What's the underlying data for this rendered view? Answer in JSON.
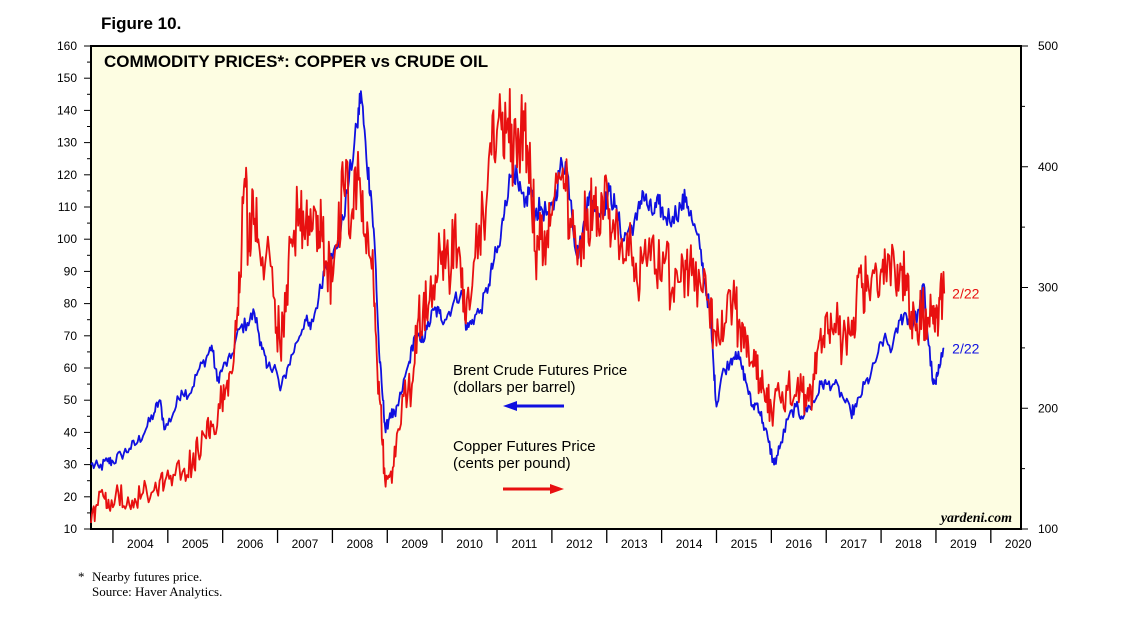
{
  "figure_label": "Figure 10.",
  "footnote": {
    "star": "*",
    "note": "Nearby futures price.",
    "source": "Source: Haver Analytics."
  },
  "credit": "yardeni.com",
  "colors": {
    "oil": "#1010e0",
    "copper": "#e81010",
    "plot_bg": "#fdfde2"
  },
  "chart_data": {
    "type": "line",
    "title": "COMMODITY PRICES*: COPPER vs CRUDE OIL",
    "x_range": [
      2003.6,
      2020.55
    ],
    "x_tick_labels": [
      "2004",
      "2005",
      "2006",
      "2007",
      "2008",
      "2009",
      "2010",
      "2011",
      "2012",
      "2013",
      "2014",
      "2015",
      "2016",
      "2017",
      "2018",
      "2019",
      "2020"
    ],
    "left_axis": {
      "range": [
        10,
        160
      ],
      "ticks": [
        10,
        20,
        30,
        40,
        50,
        60,
        70,
        80,
        90,
        100,
        110,
        120,
        130,
        140,
        150,
        160
      ]
    },
    "right_axis": {
      "range": [
        100,
        500
      ],
      "ticks": [
        100,
        200,
        300,
        400,
        500
      ]
    },
    "annotations": [
      {
        "text": [
          "Brent Crude Futures Price",
          "(dollars per barrel)"
        ],
        "arrow": "left"
      },
      {
        "text": [
          "Copper Futures Price",
          "(cents per pound)"
        ],
        "arrow": "right"
      }
    ],
    "series": [
      {
        "name": "Brent Crude Futures Price",
        "axis": "left",
        "end_label": "2/22",
        "points": [
          [
            2003.6,
            30
          ],
          [
            2003.75,
            29
          ],
          [
            2003.9,
            31
          ],
          [
            2004.0,
            31
          ],
          [
            2004.15,
            33
          ],
          [
            2004.3,
            35
          ],
          [
            2004.45,
            37
          ],
          [
            2004.6,
            41
          ],
          [
            2004.75,
            46
          ],
          [
            2004.85,
            50
          ],
          [
            2004.95,
            41
          ],
          [
            2005.1,
            46
          ],
          [
            2005.25,
            53
          ],
          [
            2005.4,
            52
          ],
          [
            2005.55,
            59
          ],
          [
            2005.7,
            63
          ],
          [
            2005.8,
            67
          ],
          [
            2005.9,
            56
          ],
          [
            2006.0,
            60
          ],
          [
            2006.15,
            63
          ],
          [
            2006.3,
            72
          ],
          [
            2006.45,
            74
          ],
          [
            2006.58,
            77
          ],
          [
            2006.7,
            68
          ],
          [
            2006.8,
            60
          ],
          [
            2006.95,
            61
          ],
          [
            2007.05,
            53
          ],
          [
            2007.2,
            61
          ],
          [
            2007.35,
            68
          ],
          [
            2007.5,
            75
          ],
          [
            2007.6,
            72
          ],
          [
            2007.75,
            82
          ],
          [
            2007.88,
            93
          ],
          [
            2008.0,
            94
          ],
          [
            2008.15,
            102
          ],
          [
            2008.3,
            118
          ],
          [
            2008.45,
            135
          ],
          [
            2008.52,
            146
          ],
          [
            2008.62,
            125
          ],
          [
            2008.7,
            115
          ],
          [
            2008.78,
            95
          ],
          [
            2008.85,
            65
          ],
          [
            2008.92,
            50
          ],
          [
            2008.97,
            40
          ],
          [
            2009.05,
            46
          ],
          [
            2009.15,
            45
          ],
          [
            2009.25,
            52
          ],
          [
            2009.4,
            62
          ],
          [
            2009.5,
            70
          ],
          [
            2009.62,
            68
          ],
          [
            2009.72,
            72
          ],
          [
            2009.85,
            78
          ],
          [
            2009.95,
            77
          ],
          [
            2010.05,
            75
          ],
          [
            2010.2,
            80
          ],
          [
            2010.35,
            84
          ],
          [
            2010.45,
            72
          ],
          [
            2010.55,
            75
          ],
          [
            2010.7,
            78
          ],
          [
            2010.85,
            86
          ],
          [
            2010.95,
            94
          ],
          [
            2011.05,
            98
          ],
          [
            2011.15,
            112
          ],
          [
            2011.3,
            123
          ],
          [
            2011.4,
            115
          ],
          [
            2011.5,
            110
          ],
          [
            2011.6,
            116
          ],
          [
            2011.7,
            108
          ],
          [
            2011.8,
            110
          ],
          [
            2011.95,
            107
          ],
          [
            2012.05,
            112
          ],
          [
            2012.15,
            122
          ],
          [
            2012.25,
            124
          ],
          [
            2012.35,
            112
          ],
          [
            2012.45,
            95
          ],
          [
            2012.55,
            100
          ],
          [
            2012.65,
            113
          ],
          [
            2012.75,
            112
          ],
          [
            2012.85,
            108
          ],
          [
            2012.95,
            110
          ],
          [
            2013.05,
            115
          ],
          [
            2013.15,
            110
          ],
          [
            2013.3,
            100
          ],
          [
            2013.4,
            103
          ],
          [
            2013.55,
            106
          ],
          [
            2013.65,
            115
          ],
          [
            2013.75,
            110
          ],
          [
            2013.85,
            108
          ],
          [
            2013.95,
            111
          ],
          [
            2014.05,
            107
          ],
          [
            2014.2,
            107
          ],
          [
            2014.35,
            110
          ],
          [
            2014.45,
            113
          ],
          [
            2014.55,
            106
          ],
          [
            2014.7,
            97
          ],
          [
            2014.8,
            85
          ],
          [
            2014.88,
            78
          ],
          [
            2014.95,
            60
          ],
          [
            2015.0,
            48
          ],
          [
            2015.1,
            58
          ],
          [
            2015.25,
            62
          ],
          [
            2015.35,
            65
          ],
          [
            2015.45,
            61
          ],
          [
            2015.55,
            55
          ],
          [
            2015.65,
            48
          ],
          [
            2015.75,
            49
          ],
          [
            2015.85,
            43
          ],
          [
            2015.95,
            37
          ],
          [
            2016.05,
            30
          ],
          [
            2016.15,
            35
          ],
          [
            2016.3,
            44
          ],
          [
            2016.45,
            48
          ],
          [
            2016.55,
            45
          ],
          [
            2016.7,
            48
          ],
          [
            2016.8,
            50
          ],
          [
            2016.9,
            55
          ],
          [
            2017.0,
            55
          ],
          [
            2017.15,
            55
          ],
          [
            2017.3,
            51
          ],
          [
            2017.45,
            46
          ],
          [
            2017.55,
            48
          ],
          [
            2017.7,
            55
          ],
          [
            2017.8,
            57
          ],
          [
            2017.95,
            65
          ],
          [
            2018.05,
            69
          ],
          [
            2018.2,
            66
          ],
          [
            2018.35,
            75
          ],
          [
            2018.45,
            77
          ],
          [
            2018.55,
            73
          ],
          [
            2018.7,
            78
          ],
          [
            2018.78,
            86
          ],
          [
            2018.85,
            70
          ],
          [
            2018.95,
            55
          ],
          [
            2019.0,
            55
          ],
          [
            2019.05,
            61
          ],
          [
            2019.15,
            66
          ]
        ]
      },
      {
        "name": "Copper Futures Price",
        "axis": "right",
        "end_label": "2/22",
        "points": [
          [
            2003.6,
            105
          ],
          [
            2003.7,
            120
          ],
          [
            2003.85,
            125
          ],
          [
            2003.95,
            115
          ],
          [
            2004.1,
            130
          ],
          [
            2004.25,
            120
          ],
          [
            2004.4,
            125
          ],
          [
            2004.55,
            130
          ],
          [
            2004.7,
            130
          ],
          [
            2004.85,
            140
          ],
          [
            2004.95,
            140
          ],
          [
            2005.1,
            145
          ],
          [
            2005.3,
            150
          ],
          [
            2005.45,
            155
          ],
          [
            2005.55,
            165
          ],
          [
            2005.7,
            175
          ],
          [
            2005.8,
            185
          ],
          [
            2005.95,
            200
          ],
          [
            2006.05,
            215
          ],
          [
            2006.15,
            230
          ],
          [
            2006.25,
            265
          ],
          [
            2006.32,
            310
          ],
          [
            2006.4,
            390
          ],
          [
            2006.48,
            330
          ],
          [
            2006.55,
            380
          ],
          [
            2006.65,
            340
          ],
          [
            2006.8,
            330
          ],
          [
            2006.95,
            290
          ],
          [
            2007.05,
            250
          ],
          [
            2007.15,
            280
          ],
          [
            2007.25,
            340
          ],
          [
            2007.4,
            365
          ],
          [
            2007.5,
            340
          ],
          [
            2007.6,
            365
          ],
          [
            2007.72,
            330
          ],
          [
            2007.8,
            350
          ],
          [
            2007.9,
            320
          ],
          [
            2008.0,
            305
          ],
          [
            2008.1,
            340
          ],
          [
            2008.2,
            385
          ],
          [
            2008.35,
            360
          ],
          [
            2008.45,
            390
          ],
          [
            2008.55,
            380
          ],
          [
            2008.65,
            345
          ],
          [
            2008.75,
            300
          ],
          [
            2008.82,
            230
          ],
          [
            2008.9,
            175
          ],
          [
            2008.97,
            135
          ],
          [
            2009.05,
            145
          ],
          [
            2009.15,
            160
          ],
          [
            2009.3,
            210
          ],
          [
            2009.45,
            220
          ],
          [
            2009.55,
            270
          ],
          [
            2009.65,
            280
          ],
          [
            2009.75,
            285
          ],
          [
            2009.88,
            310
          ],
          [
            2010.0,
            330
          ],
          [
            2010.12,
            315
          ],
          [
            2010.22,
            345
          ],
          [
            2010.35,
            300
          ],
          [
            2010.45,
            290
          ],
          [
            2010.6,
            325
          ],
          [
            2010.75,
            360
          ],
          [
            2010.9,
            410
          ],
          [
            2011.0,
            430
          ],
          [
            2011.1,
            445
          ],
          [
            2011.2,
            440
          ],
          [
            2011.3,
            410
          ],
          [
            2011.4,
            420
          ],
          [
            2011.5,
            430
          ],
          [
            2011.6,
            420
          ],
          [
            2011.7,
            330
          ],
          [
            2011.8,
            340
          ],
          [
            2011.9,
            340
          ],
          [
            2012.0,
            360
          ],
          [
            2012.15,
            390
          ],
          [
            2012.25,
            380
          ],
          [
            2012.35,
            350
          ],
          [
            2012.45,
            330
          ],
          [
            2012.55,
            345
          ],
          [
            2012.65,
            365
          ],
          [
            2012.75,
            360
          ],
          [
            2012.85,
            350
          ],
          [
            2012.95,
            365
          ],
          [
            2013.05,
            365
          ],
          [
            2013.15,
            340
          ],
          [
            2013.3,
            320
          ],
          [
            2013.45,
            330
          ],
          [
            2013.55,
            305
          ],
          [
            2013.65,
            320
          ],
          [
            2013.75,
            325
          ],
          [
            2013.9,
            315
          ],
          [
            2014.05,
            320
          ],
          [
            2014.2,
            300
          ],
          [
            2014.35,
            305
          ],
          [
            2014.45,
            315
          ],
          [
            2014.55,
            310
          ],
          [
            2014.7,
            305
          ],
          [
            2014.85,
            290
          ],
          [
            2014.95,
            265
          ],
          [
            2015.05,
            255
          ],
          [
            2015.15,
            270
          ],
          [
            2015.3,
            290
          ],
          [
            2015.4,
            270
          ],
          [
            2015.5,
            250
          ],
          [
            2015.6,
            235
          ],
          [
            2015.7,
            235
          ],
          [
            2015.8,
            225
          ],
          [
            2015.9,
            205
          ],
          [
            2016.0,
            200
          ],
          [
            2016.15,
            210
          ],
          [
            2016.3,
            215
          ],
          [
            2016.45,
            210
          ],
          [
            2016.55,
            215
          ],
          [
            2016.65,
            210
          ],
          [
            2016.75,
            210
          ],
          [
            2016.85,
            250
          ],
          [
            2016.95,
            260
          ],
          [
            2017.05,
            265
          ],
          [
            2017.15,
            270
          ],
          [
            2017.3,
            255
          ],
          [
            2017.45,
            260
          ],
          [
            2017.55,
            290
          ],
          [
            2017.65,
            300
          ],
          [
            2017.75,
            310
          ],
          [
            2017.9,
            320
          ],
          [
            2018.0,
            315
          ],
          [
            2018.1,
            305
          ],
          [
            2018.25,
            315
          ],
          [
            2018.35,
            320
          ],
          [
            2018.45,
            310
          ],
          [
            2018.55,
            280
          ],
          [
            2018.65,
            270
          ],
          [
            2018.75,
            280
          ],
          [
            2018.85,
            275
          ],
          [
            2018.95,
            270
          ],
          [
            2019.0,
            275
          ],
          [
            2019.07,
            290
          ],
          [
            2019.15,
            295
          ]
        ]
      }
    ]
  }
}
